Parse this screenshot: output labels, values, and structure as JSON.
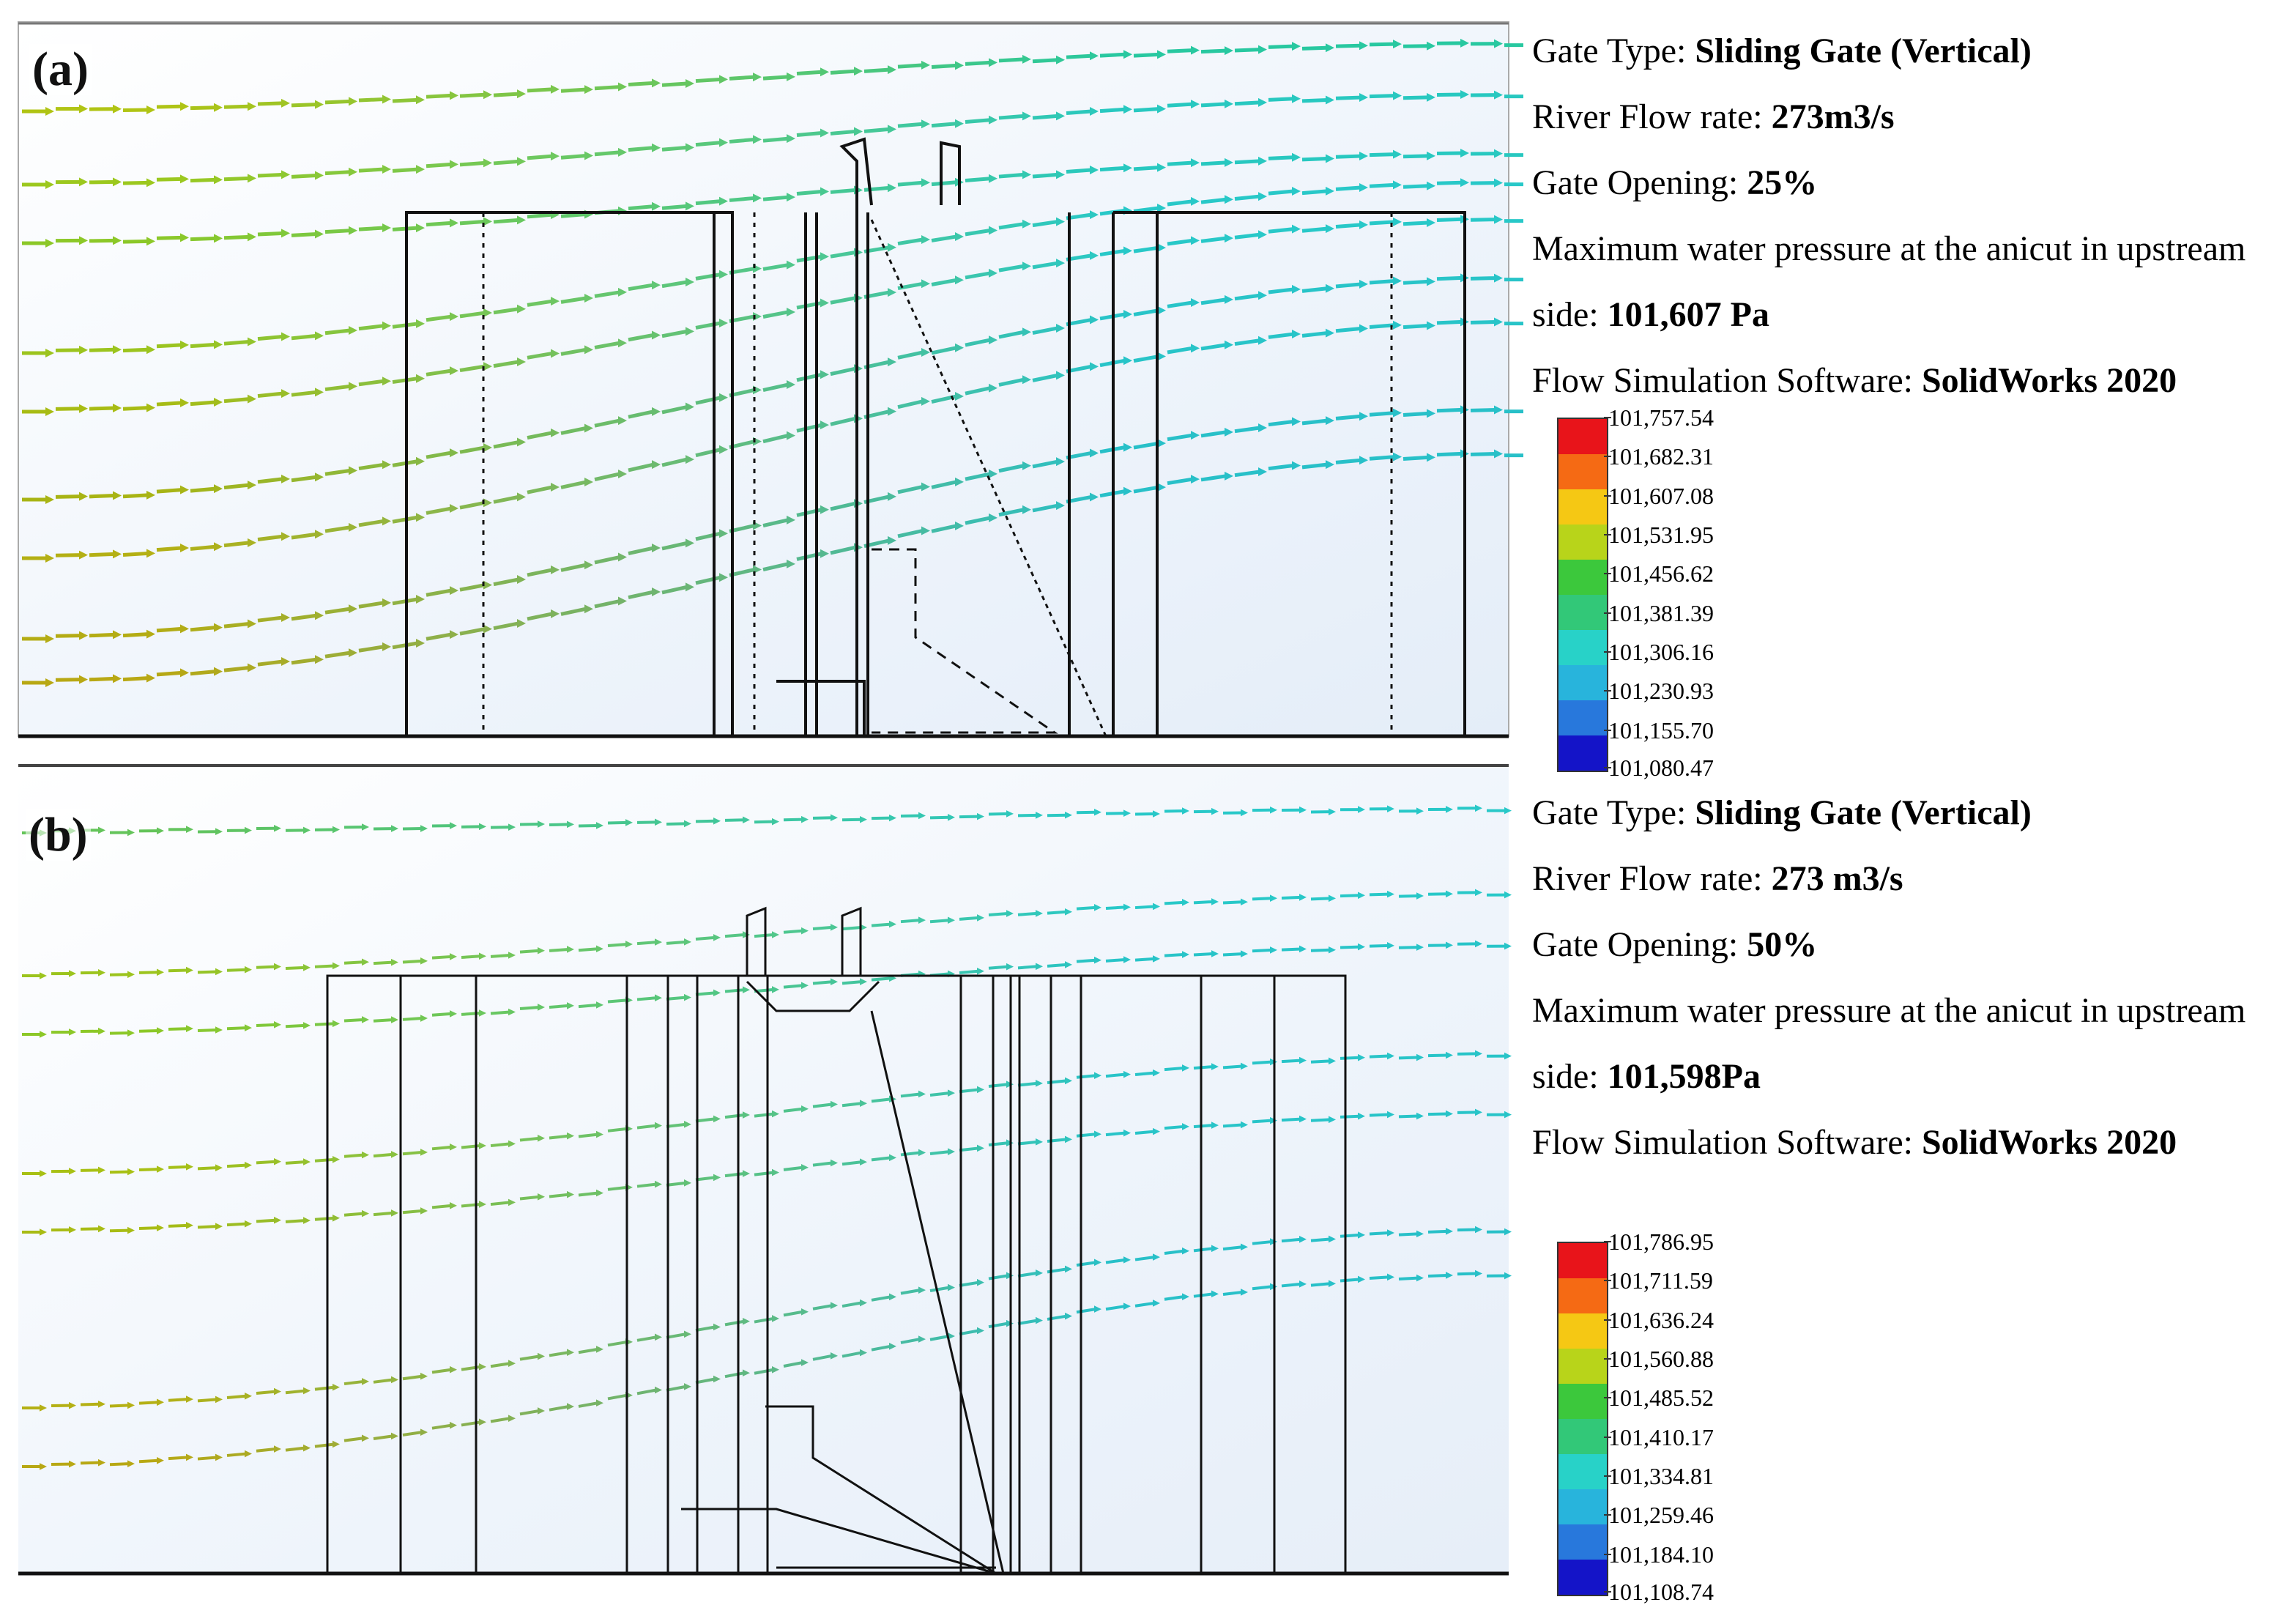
{
  "panels": [
    {
      "id": "a",
      "label": "(a)",
      "info": {
        "gate_type_label": "Gate Type: ",
        "gate_type_value": "Sliding Gate (Vertical)",
        "flow_rate_label": "River Flow rate: ",
        "flow_rate_value": "273m3/s",
        "opening_label": "Gate Opening: ",
        "opening_value": "25%",
        "pressure_label_line1": "Maximum water pressure at the anicut in upstream",
        "pressure_label_line2": "side: ",
        "pressure_value": "101,607 Pa",
        "software_label": "Flow Simulation Software: ",
        "software_value": "SolidWorks 2020"
      },
      "legend": [
        "101,757.54",
        "101,682.31",
        "101,607.08",
        "101,531.95",
        "101,456.62",
        "101,381.39",
        "101,306.16",
        "101,230.93",
        "101,155.70",
        "101,080.47"
      ]
    },
    {
      "id": "b",
      "label": "(b)",
      "info": {
        "gate_type_label": "Gate Type: ",
        "gate_type_value": "Sliding Gate (Vertical)",
        "flow_rate_label": "River Flow rate: ",
        "flow_rate_value": "273 m3/s",
        "opening_label": "Gate Opening: ",
        "opening_value": "50%",
        "pressure_label_line1": "Maximum water pressure at the anicut in upstream",
        "pressure_label_line2": "side: ",
        "pressure_value": "101,598Pa",
        "software_label": "Flow Simulation Software: ",
        "software_value": "SolidWorks 2020"
      },
      "legend": [
        "101,786.95",
        "101,711.59",
        "101,636.24",
        "101,560.88",
        "101,485.52",
        "101,410.17",
        "101,334.81",
        "101,259.46",
        "101,184.10",
        "101,108.74"
      ]
    }
  ],
  "legend_colors": [
    "#e8141a",
    "#f56a14",
    "#f5c814",
    "#b8d41a",
    "#3cc83c",
    "#32c878",
    "#28d2c8",
    "#28b4dc",
    "#2878dc",
    "#1414c8"
  ]
}
